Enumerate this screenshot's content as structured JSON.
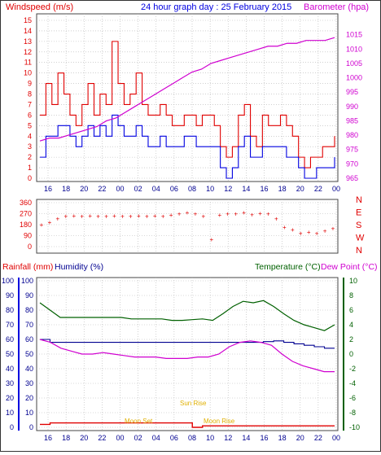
{
  "title": "24 hour graph day : 25 February 2015",
  "colors": {
    "red": "#e00000",
    "blue": "#0000e0",
    "magenta": "#d000d0",
    "green": "#006000",
    "navy": "#000090",
    "gold": "#e0b000",
    "grid": "#b4b4b4"
  },
  "x_ticks": [
    "16",
    "18",
    "20",
    "22",
    "00",
    "02",
    "04",
    "06",
    "08",
    "10",
    "12",
    "14",
    "16",
    "18",
    "20",
    "22",
    "00"
  ],
  "panels": {
    "wind": {
      "left_label": "Windspeed (m/s)",
      "right_label": "Barometer (hpa)",
      "left_ticks": [
        "0",
        "1",
        "2",
        "3",
        "4",
        "5",
        "6",
        "7",
        "8",
        "9",
        "10",
        "11",
        "12",
        "13",
        "14",
        "15"
      ],
      "right_ticks": [
        "965",
        "970",
        "975",
        "980",
        "985",
        "990",
        "995",
        "1000",
        "1005",
        "1010",
        "1015"
      ]
    },
    "direction": {
      "ticks": [
        "0",
        "90",
        "180",
        "270",
        "360"
      ],
      "compass": [
        "N",
        "W",
        "S",
        "E",
        "N"
      ]
    },
    "rain": {
      "label_rain": "Rainfall (mm)",
      "label_humidity": "Humidity (%)",
      "label_temperature": "Temperature (°C)",
      "label_dewpoint": "Dew Point (°C)",
      "left_outer_ticks": [
        "0",
        "10",
        "20",
        "30",
        "40",
        "50",
        "60",
        "70",
        "80",
        "90",
        "100"
      ],
      "left_inner_ticks": [
        "0",
        "10",
        "20",
        "30",
        "40",
        "50",
        "60",
        "70",
        "80",
        "90",
        "100"
      ],
      "right_ticks": [
        "-10",
        "-8",
        "-6",
        "-4",
        "-2",
        "0",
        "2",
        "4",
        "6",
        "8",
        "10"
      ],
      "annotations": [
        "Moon Set",
        "Sun Rise",
        "Moon Rise"
      ]
    }
  },
  "chart_data": [
    {
      "type": "line",
      "x": "hours since 15:00 (24h window, 15:00 → 00:00 next day)",
      "series": [
        {
          "name": "Windspeed (m/s) gust",
          "values": [
            6,
            9,
            7,
            10,
            8,
            6,
            5,
            7,
            9,
            6,
            8,
            7,
            13,
            9,
            7,
            8,
            10,
            7,
            6,
            6,
            7,
            6,
            5,
            5,
            6,
            6,
            5,
            6,
            6,
            5,
            3,
            2,
            3,
            6,
            7,
            4,
            3,
            6,
            5,
            5,
            6,
            5,
            4,
            2,
            1,
            2,
            2,
            3,
            3,
            4
          ]
        },
        {
          "name": "Windspeed (m/s) average",
          "values": [
            2,
            4,
            4,
            5,
            5,
            4,
            3,
            4,
            5,
            4,
            5,
            4,
            6,
            5,
            4,
            4,
            5,
            4,
            3,
            3,
            4,
            3,
            3,
            3,
            4,
            4,
            3,
            3,
            3,
            3,
            1,
            0,
            1,
            3,
            4,
            2,
            2,
            3,
            3,
            3,
            3,
            2,
            2,
            1,
            0,
            0,
            1,
            1,
            1,
            2
          ]
        },
        {
          "name": "Barometer (hpa)",
          "values": [
            978,
            979,
            979,
            980,
            981,
            982,
            983,
            985,
            986,
            988,
            990,
            992,
            994,
            996,
            998,
            1000,
            1002,
            1003,
            1005,
            1006,
            1007,
            1008,
            1009,
            1010,
            1011,
            1011,
            1012,
            1012,
            1013,
            1013,
            1013,
            1014
          ]
        },
        {
          "name": "Wind direction (deg)",
          "values": [
            180,
            200,
            230,
            250,
            255,
            250,
            255,
            250,
            250,
            255,
            250,
            250,
            255,
            250,
            255,
            250,
            260,
            270,
            280,
            270,
            250,
            60,
            260,
            270,
            270,
            280,
            265,
            275,
            270,
            230,
            160,
            140,
            110,
            120,
            110,
            130,
            150
          ]
        },
        {
          "name": "Temperature (°C)",
          "values": [
            7,
            6,
            5,
            5,
            5,
            5,
            5,
            5,
            5,
            4.8,
            4.8,
            4.8,
            4.8,
            4.6,
            4.6,
            4.7,
            4.8,
            4.6,
            5.5,
            6.5,
            7.2,
            7,
            7.3,
            6.5,
            5.5,
            4.6,
            4,
            3.6,
            3.2,
            4
          ]
        },
        {
          "name": "Dew Point (°C)",
          "values": [
            2,
            1.6,
            1.6,
            1.6,
            1.6,
            1.6,
            1.6,
            1.6,
            1.6,
            1.6,
            1.6,
            1.6,
            1.6,
            1.6,
            1.6,
            1.6,
            1.6,
            1.6,
            1.6,
            1.6,
            1.6,
            1.6,
            1.7,
            1.8,
            1.6,
            1.4,
            1.2,
            1,
            0.8,
            0.8
          ]
        },
        {
          "name": "Humidity (%)",
          "values": [
            60,
            58,
            54,
            52,
            50,
            50,
            51,
            50,
            49,
            48,
            48,
            48,
            47,
            47,
            47,
            48,
            48,
            50,
            55,
            58,
            59,
            58,
            56,
            50,
            45,
            42,
            40,
            38,
            38
          ]
        },
        {
          "name": "Rainfall (mm)",
          "values": [
            2,
            3,
            3,
            3,
            3,
            3,
            3,
            3,
            3,
            3,
            3,
            3,
            3,
            3,
            3,
            0,
            1,
            1,
            1,
            1,
            1,
            1,
            1,
            1,
            1,
            1,
            1,
            1,
            1,
            1
          ]
        }
      ]
    }
  ]
}
